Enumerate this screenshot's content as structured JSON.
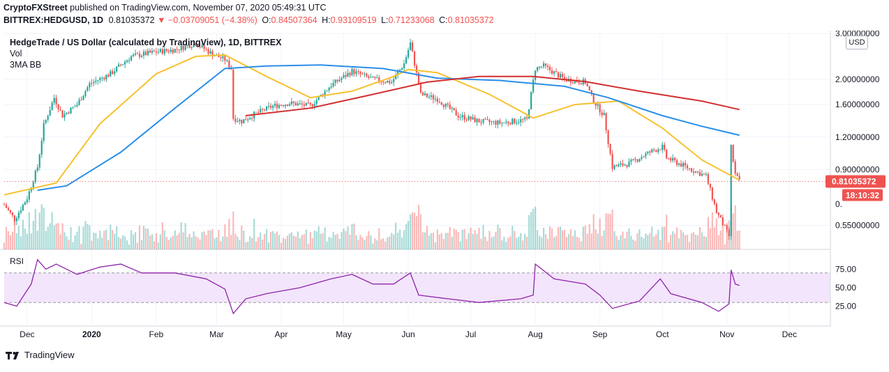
{
  "header": {
    "line1": {
      "author": "CryptoFXStreet",
      "published_text": "published on TradingView.com, November 07, 2020 05:49:31 UTC"
    },
    "line2": {
      "symbol": "BITTREX:HEDGUSD, 1D",
      "last": "0.81035372",
      "change": "−0.03709051 (−4.38%)",
      "o_label": "O:",
      "o": "0.84507364",
      "h_label": "H:",
      "h": "0.93109519",
      "l_label": "L:",
      "l": "0.71233068",
      "c_label": "C:",
      "c": "0.81035372"
    }
  },
  "legend": {
    "title": "HedgeTrade / US Dollar (calculated by TradingView), 1D, BITTREX",
    "vol": "Vol",
    "bb": "3MA BB",
    "currency_button": "USD"
  },
  "price_axis": {
    "ticks": [
      "3.00000000",
      "2.00000000",
      "1.60000000",
      "1.20000000",
      "0.90000000",
      "0.55000000"
    ],
    "partial_label": "0.",
    "last_price_label": "0.81035372",
    "countdown_label": "18:10:32"
  },
  "rsi": {
    "label": "RSI",
    "ticks": [
      "75.00",
      "50.00",
      "25.00"
    ]
  },
  "time_axis": {
    "labels": [
      "Dec",
      "2020",
      "Feb",
      "Mar",
      "Apr",
      "May",
      "Jun",
      "Jul",
      "Aug",
      "Sep",
      "Oct",
      "Nov",
      "Dec"
    ]
  },
  "footer": {
    "brand": "TradingView"
  },
  "colors": {
    "up": "#26a69a",
    "down": "#ef5350",
    "ma_fast": "#f7c12d",
    "ma_mid": "#2a8ee8",
    "ma_slow": "#d32f2f",
    "rsi_line": "#8e24aa",
    "rsi_band": "#f3e5fb"
  },
  "chart_data": {
    "type": "candlestick",
    "title": "HedgeTrade / US Dollar (calculated by TradingView), 1D, BITTREX",
    "y_scale": "log",
    "ylim": [
      0.45,
      3.0
    ],
    "x_range": [
      "2019-11-20",
      "2020-12-20"
    ],
    "close_path": [
      [
        "2019-11-20",
        0.66
      ],
      [
        "2019-11-25",
        0.58
      ],
      [
        "2019-12-01",
        0.7
      ],
      [
        "2019-12-06",
        0.92
      ],
      [
        "2019-12-09",
        1.33
      ],
      [
        "2019-12-14",
        1.7
      ],
      [
        "2019-12-18",
        1.45
      ],
      [
        "2019-12-25",
        1.6
      ],
      [
        "2019-12-31",
        1.92
      ],
      [
        "2020-01-10",
        2.1
      ],
      [
        "2020-01-20",
        2.45
      ],
      [
        "2020-02-01",
        2.55
      ],
      [
        "2020-02-10",
        2.6
      ],
      [
        "2020-02-20",
        2.75
      ],
      [
        "2020-02-28",
        2.5
      ],
      [
        "2020-03-05",
        2.38
      ],
      [
        "2020-03-08",
        2.2
      ],
      [
        "2020-03-09",
        1.42
      ],
      [
        "2020-03-13",
        1.38
      ],
      [
        "2020-03-20",
        1.48
      ],
      [
        "2020-03-28",
        1.58
      ],
      [
        "2020-04-05",
        1.62
      ],
      [
        "2020-04-15",
        1.58
      ],
      [
        "2020-04-25",
        1.9
      ],
      [
        "2020-05-05",
        2.15
      ],
      [
        "2020-05-15",
        2.0
      ],
      [
        "2020-05-24",
        1.95
      ],
      [
        "2020-05-30",
        2.3
      ],
      [
        "2020-06-02",
        2.75
      ],
      [
        "2020-06-04",
        2.3
      ],
      [
        "2020-06-07",
        1.75
      ],
      [
        "2020-06-15",
        1.68
      ],
      [
        "2020-06-25",
        1.45
      ],
      [
        "2020-07-05",
        1.38
      ],
      [
        "2020-07-15",
        1.36
      ],
      [
        "2020-07-28",
        1.4
      ],
      [
        "2020-08-01",
        2.2
      ],
      [
        "2020-08-05",
        2.25
      ],
      [
        "2020-08-15",
        2.0
      ],
      [
        "2020-08-25",
        1.95
      ],
      [
        "2020-08-29",
        1.65
      ],
      [
        "2020-09-03",
        1.45
      ],
      [
        "2020-09-07",
        0.92
      ],
      [
        "2020-09-15",
        0.95
      ],
      [
        "2020-09-25",
        1.05
      ],
      [
        "2020-10-01",
        1.1
      ],
      [
        "2020-10-03",
        1.0
      ],
      [
        "2020-10-15",
        0.9
      ],
      [
        "2020-10-22",
        0.85
      ],
      [
        "2020-10-27",
        0.62
      ],
      [
        "2020-11-02",
        0.5
      ],
      [
        "2020-11-03",
        1.1
      ],
      [
        "2020-11-05",
        0.86
      ],
      [
        "2020-11-07",
        0.81035372
      ]
    ],
    "moving_averages": [
      {
        "color": "#f7c12d",
        "points": [
          [
            "2019-11-20",
            0.72
          ],
          [
            "2019-12-15",
            0.8
          ],
          [
            "2020-01-05",
            1.35
          ],
          [
            "2020-02-01",
            2.1
          ],
          [
            "2020-02-20",
            2.45
          ],
          [
            "2020-03-05",
            2.48
          ],
          [
            "2020-03-25",
            2.05
          ],
          [
            "2020-04-15",
            1.7
          ],
          [
            "2020-05-05",
            1.8
          ],
          [
            "2020-05-25",
            2.05
          ],
          [
            "2020-06-01",
            2.18
          ],
          [
            "2020-06-15",
            2.12
          ],
          [
            "2020-07-10",
            1.75
          ],
          [
            "2020-07-31",
            1.42
          ],
          [
            "2020-08-20",
            1.6
          ],
          [
            "2020-09-10",
            1.65
          ],
          [
            "2020-10-01",
            1.3
          ],
          [
            "2020-10-20",
            0.98
          ],
          [
            "2020-11-07",
            0.82
          ]
        ]
      },
      {
        "color": "#2a8ee8",
        "points": [
          [
            "2019-12-06",
            0.75
          ],
          [
            "2019-12-20",
            0.78
          ],
          [
            "2020-01-15",
            1.05
          ],
          [
            "2020-02-10",
            1.55
          ],
          [
            "2020-03-05",
            2.2
          ],
          [
            "2020-03-25",
            2.25
          ],
          [
            "2020-04-20",
            2.27
          ],
          [
            "2020-05-20",
            2.2
          ],
          [
            "2020-06-15",
            2.02
          ],
          [
            "2020-07-15",
            1.98
          ],
          [
            "2020-08-15",
            1.88
          ],
          [
            "2020-09-05",
            1.7
          ],
          [
            "2020-10-01",
            1.45
          ],
          [
            "2020-10-20",
            1.32
          ],
          [
            "2020-11-07",
            1.22
          ]
        ]
      },
      {
        "color": "#d32f2f",
        "points": [
          [
            "2020-03-15",
            1.45
          ],
          [
            "2020-04-15",
            1.55
          ],
          [
            "2020-05-15",
            1.75
          ],
          [
            "2020-06-10",
            1.95
          ],
          [
            "2020-07-05",
            2.05
          ],
          [
            "2020-07-31",
            2.05
          ],
          [
            "2020-08-25",
            1.96
          ],
          [
            "2020-09-20",
            1.8
          ],
          [
            "2020-10-20",
            1.65
          ],
          [
            "2020-11-07",
            1.53
          ]
        ]
      }
    ],
    "rsi": {
      "ylim": [
        0,
        100
      ],
      "band": [
        30,
        70
      ],
      "points": [
        [
          "2019-11-20",
          30
        ],
        [
          "2019-11-26",
          25
        ],
        [
          "2019-12-03",
          55
        ],
        [
          "2019-12-06",
          88
        ],
        [
          "2019-12-10",
          75
        ],
        [
          "2019-12-15",
          82
        ],
        [
          "2019-12-25",
          68
        ],
        [
          "2020-01-05",
          78
        ],
        [
          "2020-01-15",
          82
        ],
        [
          "2020-01-25",
          70
        ],
        [
          "2020-02-10",
          70
        ],
        [
          "2020-02-25",
          62
        ],
        [
          "2020-03-05",
          48
        ],
        [
          "2020-03-09",
          15
        ],
        [
          "2020-03-15",
          35
        ],
        [
          "2020-03-25",
          42
        ],
        [
          "2020-04-10",
          50
        ],
        [
          "2020-04-25",
          62
        ],
        [
          "2020-05-05",
          68
        ],
        [
          "2020-05-15",
          55
        ],
        [
          "2020-05-25",
          55
        ],
        [
          "2020-06-02",
          70
        ],
        [
          "2020-06-06",
          40
        ],
        [
          "2020-06-20",
          35
        ],
        [
          "2020-07-05",
          30
        ],
        [
          "2020-07-25",
          35
        ],
        [
          "2020-07-31",
          40
        ],
        [
          "2020-08-01",
          82
        ],
        [
          "2020-08-10",
          62
        ],
        [
          "2020-08-25",
          55
        ],
        [
          "2020-09-01",
          40
        ],
        [
          "2020-09-07",
          22
        ],
        [
          "2020-09-20",
          32
        ],
        [
          "2020-09-30",
          62
        ],
        [
          "2020-10-05",
          42
        ],
        [
          "2020-10-20",
          30
        ],
        [
          "2020-10-28",
          18
        ],
        [
          "2020-11-02",
          28
        ],
        [
          "2020-11-03",
          74
        ],
        [
          "2020-11-05",
          55
        ],
        [
          "2020-11-07",
          53
        ]
      ]
    }
  }
}
